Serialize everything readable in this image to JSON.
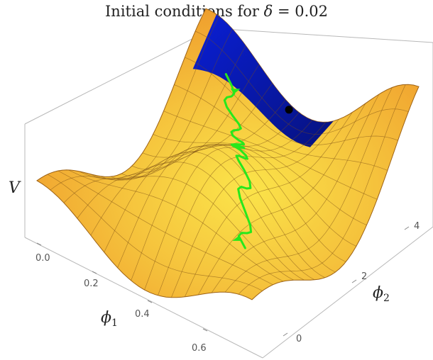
{
  "chart_data": {
    "type": "surface3d",
    "title_prefix": "Initial conditions for ",
    "title_symbol": "δ",
    "title_suffix": " = 0.02",
    "zlabel": "V",
    "xlabel": "ϕ",
    "xlabel_sub": "1",
    "ylabel": "ϕ",
    "ylabel_sub": "2",
    "x_ticks": [
      "0.0",
      "0.2",
      "0.4",
      "0.6"
    ],
    "y_ticks": [
      "0",
      "2",
      "4"
    ],
    "xlim": [
      -0.05,
      0.7
    ],
    "ylim": [
      -1,
      5
    ],
    "colors": {
      "surface_top": "#f7d24a",
      "surface_mid": "#f2a531",
      "surface_dark": "#c9771b",
      "highlight_region": "#0a1fd6",
      "trajectory": "#27e81c",
      "marker": "#000000",
      "box": "#b5b5b5",
      "mesh": "#8a5a1a"
    },
    "series": [
      {
        "name": "",
        "kind": "trajectory",
        "points": [
          [
            0.08,
            4.4
          ],
          [
            0.2,
            3.6
          ],
          [
            0.3,
            2.6
          ],
          [
            0.42,
            1.6
          ],
          [
            0.55,
            0.3
          ]
        ]
      },
      {
        "name": "",
        "kind": "point",
        "points": [
          [
            0.0,
            4.8
          ]
        ]
      }
    ]
  }
}
